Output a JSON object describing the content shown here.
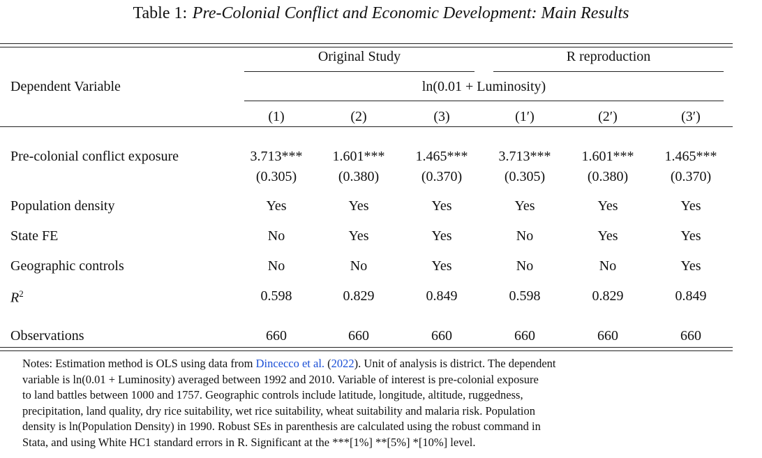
{
  "title": {
    "lead": "Table 1:",
    "text": "Pre-Colonial Conflict and Economic Development: Main Results"
  },
  "header": {
    "group_original": "Original Study",
    "group_reproduction": "R reproduction",
    "dep_var_label": "Dependent Variable",
    "dep_var": "ln(0.01 + Luminosity)",
    "columns": [
      "(1)",
      "(2)",
      "(3)",
      "(1′)",
      "(2′)",
      "(3′)"
    ]
  },
  "rows": [
    {
      "label": "Pre-colonial conflict exposure",
      "values": [
        "3.713***",
        "1.601***",
        "1.465***",
        "3.713***",
        "1.601***",
        "1.465***"
      ],
      "se": [
        "(0.305)",
        "(0.380)",
        "(0.370)",
        "(0.305)",
        "(0.380)",
        "(0.370)"
      ]
    },
    {
      "label": "Population density",
      "values": [
        "Yes",
        "Yes",
        "Yes",
        "Yes",
        "Yes",
        "Yes"
      ]
    },
    {
      "label": "State FE",
      "values": [
        "No",
        "Yes",
        "Yes",
        "No",
        "Yes",
        "Yes"
      ]
    },
    {
      "label": "Geographic controls",
      "values": [
        "No",
        "No",
        "Yes",
        "No",
        "No",
        "Yes"
      ]
    },
    {
      "label": "R",
      "label_sup": "2",
      "values": [
        "0.598",
        "0.829",
        "0.849",
        "0.598",
        "0.829",
        "0.849"
      ]
    },
    {
      "label": "Observations",
      "values": [
        "660",
        "660",
        "660",
        "660",
        "660",
        "660"
      ]
    }
  ],
  "notes": {
    "line1_pre": "Notes: Estimation method is OLS using data from ",
    "link_author": "Dincecco et al.",
    "paren_open": " (",
    "link_year": "2022",
    "line1_post": ").  Unit of analysis is district.  The dependent",
    "line2": "variable is ln(0.01 + Luminosity) averaged between 1992 and 2010.  Variable of interest is pre-colonial exposure",
    "line3": "to land battles between 1000 and 1757.  Geographic controls include latitude, longitude, altitude, ruggedness,",
    "line4": "precipitation, land quality, dry rice suitability, wet rice suitability, wheat suitability and malaria risk. Population",
    "line5": "density is ln(Population Density) in 1990. Robust SEs in parenthesis are calculated using the robust command in",
    "line6": "Stata, and using White HC1 standard errors in R. Significant at the ***[1%] **[5%] *[10%] level."
  }
}
